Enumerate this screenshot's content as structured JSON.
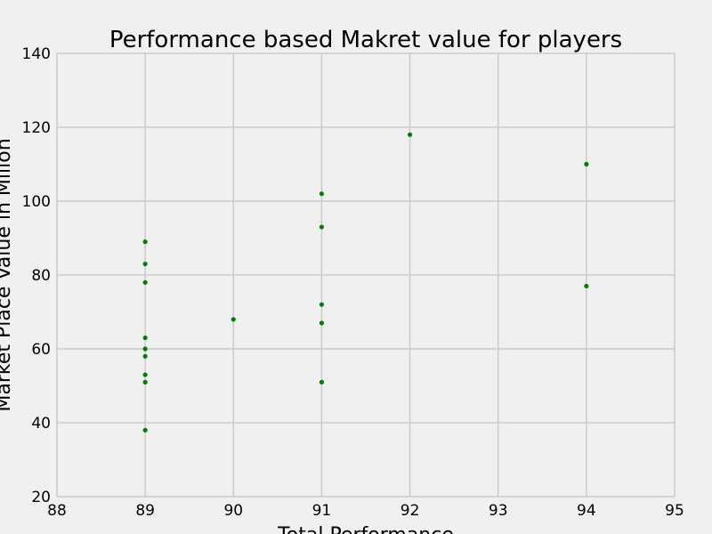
{
  "chart_data": {
    "type": "scatter",
    "title": "Performance based Makret value for players",
    "xlabel": "Total Performance",
    "ylabel": "Market Place Value in Millon",
    "xlim": [
      88,
      95
    ],
    "ylim": [
      20,
      140
    ],
    "x_ticks": [
      88,
      89,
      90,
      91,
      92,
      93,
      94,
      95
    ],
    "y_ticks": [
      20,
      40,
      60,
      80,
      100,
      120,
      140
    ],
    "grid": true,
    "point_color": "#008000",
    "background_color": "#f0f0f0",
    "grid_color": "#cbcbcb",
    "points": [
      {
        "x": 89,
        "y": 89
      },
      {
        "x": 89,
        "y": 83
      },
      {
        "x": 89,
        "y": 78
      },
      {
        "x": 89,
        "y": 63
      },
      {
        "x": 89,
        "y": 60
      },
      {
        "x": 89,
        "y": 58
      },
      {
        "x": 89,
        "y": 53
      },
      {
        "x": 89,
        "y": 51
      },
      {
        "x": 89,
        "y": 38
      },
      {
        "x": 90,
        "y": 68
      },
      {
        "x": 91,
        "y": 102
      },
      {
        "x": 91,
        "y": 93
      },
      {
        "x": 91,
        "y": 72
      },
      {
        "x": 91,
        "y": 67
      },
      {
        "x": 91,
        "y": 51
      },
      {
        "x": 92,
        "y": 118
      },
      {
        "x": 94,
        "y": 110
      },
      {
        "x": 94,
        "y": 77
      }
    ]
  }
}
